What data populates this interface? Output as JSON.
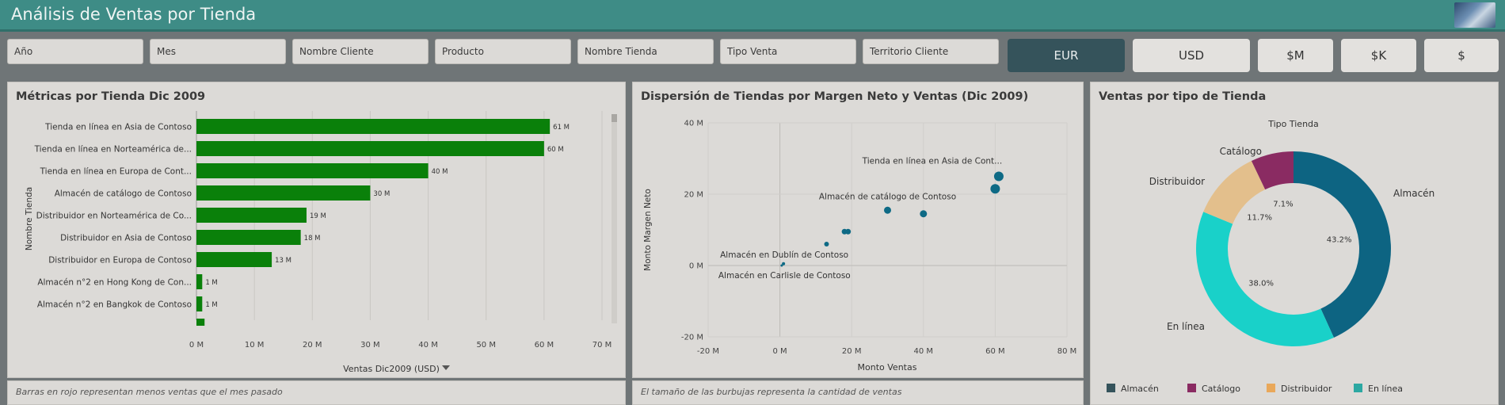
{
  "app": {
    "title": "Análisis de Ventas por Tienda"
  },
  "filters": [
    "Año",
    "Mes",
    "Nombre Cliente",
    "Producto",
    "Nombre Tienda",
    "Tipo Venta",
    "Territorio Cliente"
  ],
  "currency": {
    "options": [
      "EUR",
      "USD",
      "$M",
      "$K",
      "$"
    ],
    "selected": "EUR"
  },
  "colors": {
    "bar": "#0a800a",
    "bubble": "#0e6a85",
    "almacen": "#0d6482",
    "catalogo": "#8a2b62",
    "distribuidor": "#e3bf8c",
    "enlinea": "#19d1c9"
  },
  "bar_panel": {
    "title": "Métricas por Tienda Dic 2009",
    "footer": "Barras en rojo representan menos ventas que el mes pasado",
    "chart_data": {
      "type": "bar",
      "orientation": "horizontal",
      "categories": [
        "Tienda en línea en Asia de Contoso",
        "Tienda en línea en Norteamérica de...",
        "Tienda en línea en Europa de Cont...",
        "Almacén de catálogo de Contoso",
        "Distribuidor en Norteamérica de Co...",
        "Distribuidor en Asia de Contoso",
        "Distribuidor en Europa de Contoso",
        "Almacén n°2 en Hong Kong de Con...",
        "Almacén n°2 en Bangkok de Contoso"
      ],
      "values": [
        61,
        60,
        40,
        30,
        19,
        18,
        13,
        1,
        1
      ],
      "value_labels": [
        "61 M",
        "60 M",
        "40 M",
        "30 M",
        "19 M",
        "18 M",
        "13 M",
        "1 M",
        "1 M"
      ],
      "xlabel": "Ventas Dic2009 (USD)",
      "ylabel": "Nombre Tienda",
      "xlim": [
        0,
        70
      ],
      "xticks": [
        "0 M",
        "10 M",
        "20 M",
        "30 M",
        "40 M",
        "50 M",
        "60 M",
        "70 M"
      ],
      "grid": true
    }
  },
  "scatter_panel": {
    "title": "Dispersión de Tiendas por Margen Neto y Ventas (Dic 2009)",
    "footer": "El tamaño de las burbujas representa la cantidad de ventas",
    "chart_data": {
      "type": "scatter",
      "xlabel": "Monto Ventas",
      "ylabel": "Monto Margen Neto",
      "xlim": [
        -20,
        80
      ],
      "ylim": [
        -20,
        40
      ],
      "xticks": [
        "-20 M",
        "0 M",
        "20 M",
        "40 M",
        "60 M",
        "80 M"
      ],
      "yticks": [
        "-20 M",
        "0 M",
        "20 M",
        "40 M"
      ],
      "points": [
        {
          "x": 61,
          "y": 25,
          "size": 6,
          "label": "Tienda en línea en Asia de Cont..."
        },
        {
          "x": 60,
          "y": 21.5,
          "size": 6,
          "label": ""
        },
        {
          "x": 40,
          "y": 14.5,
          "size": 4.5,
          "label": ""
        },
        {
          "x": 30,
          "y": 15.5,
          "size": 4.5,
          "label": "Almacén de catálogo de Contoso"
        },
        {
          "x": 19,
          "y": 9.5,
          "size": 3.5,
          "label": ""
        },
        {
          "x": 18,
          "y": 9.5,
          "size": 3.5,
          "label": ""
        },
        {
          "x": 13,
          "y": 6,
          "size": 3,
          "label": ""
        },
        {
          "x": 1,
          "y": 0.5,
          "size": 2,
          "label": "Almacén en Dublín de Contoso"
        },
        {
          "x": 0.5,
          "y": 0,
          "size": 1.5,
          "label": "Almacén en Carlisle de Contoso"
        }
      ],
      "grid": true
    }
  },
  "donut_panel": {
    "title": "Ventas por tipo de Tienda",
    "chart_data": {
      "type": "pie",
      "subtitle": "Tipo Tienda",
      "slices": [
        {
          "name": "Almacén",
          "value": 43.2,
          "label": "43.2%",
          "color": "#0d6482"
        },
        {
          "name": "En línea",
          "value": 38.0,
          "label": "38.0%",
          "color": "#19d1c9"
        },
        {
          "name": "Distribuidor",
          "value": 11.7,
          "label": "11.7%",
          "color": "#e3bf8c"
        },
        {
          "name": "Catálogo",
          "value": 7.1,
          "label": "7.1%",
          "color": "#8a2b62"
        }
      ],
      "legend": [
        {
          "name": "Almacén",
          "color": "#35535b"
        },
        {
          "name": "Catálogo",
          "color": "#8a2b62"
        },
        {
          "name": "Distribuidor",
          "color": "#e9a85a"
        },
        {
          "name": "En línea",
          "color": "#2ca8a2"
        }
      ],
      "legend_position": "bottom"
    }
  }
}
